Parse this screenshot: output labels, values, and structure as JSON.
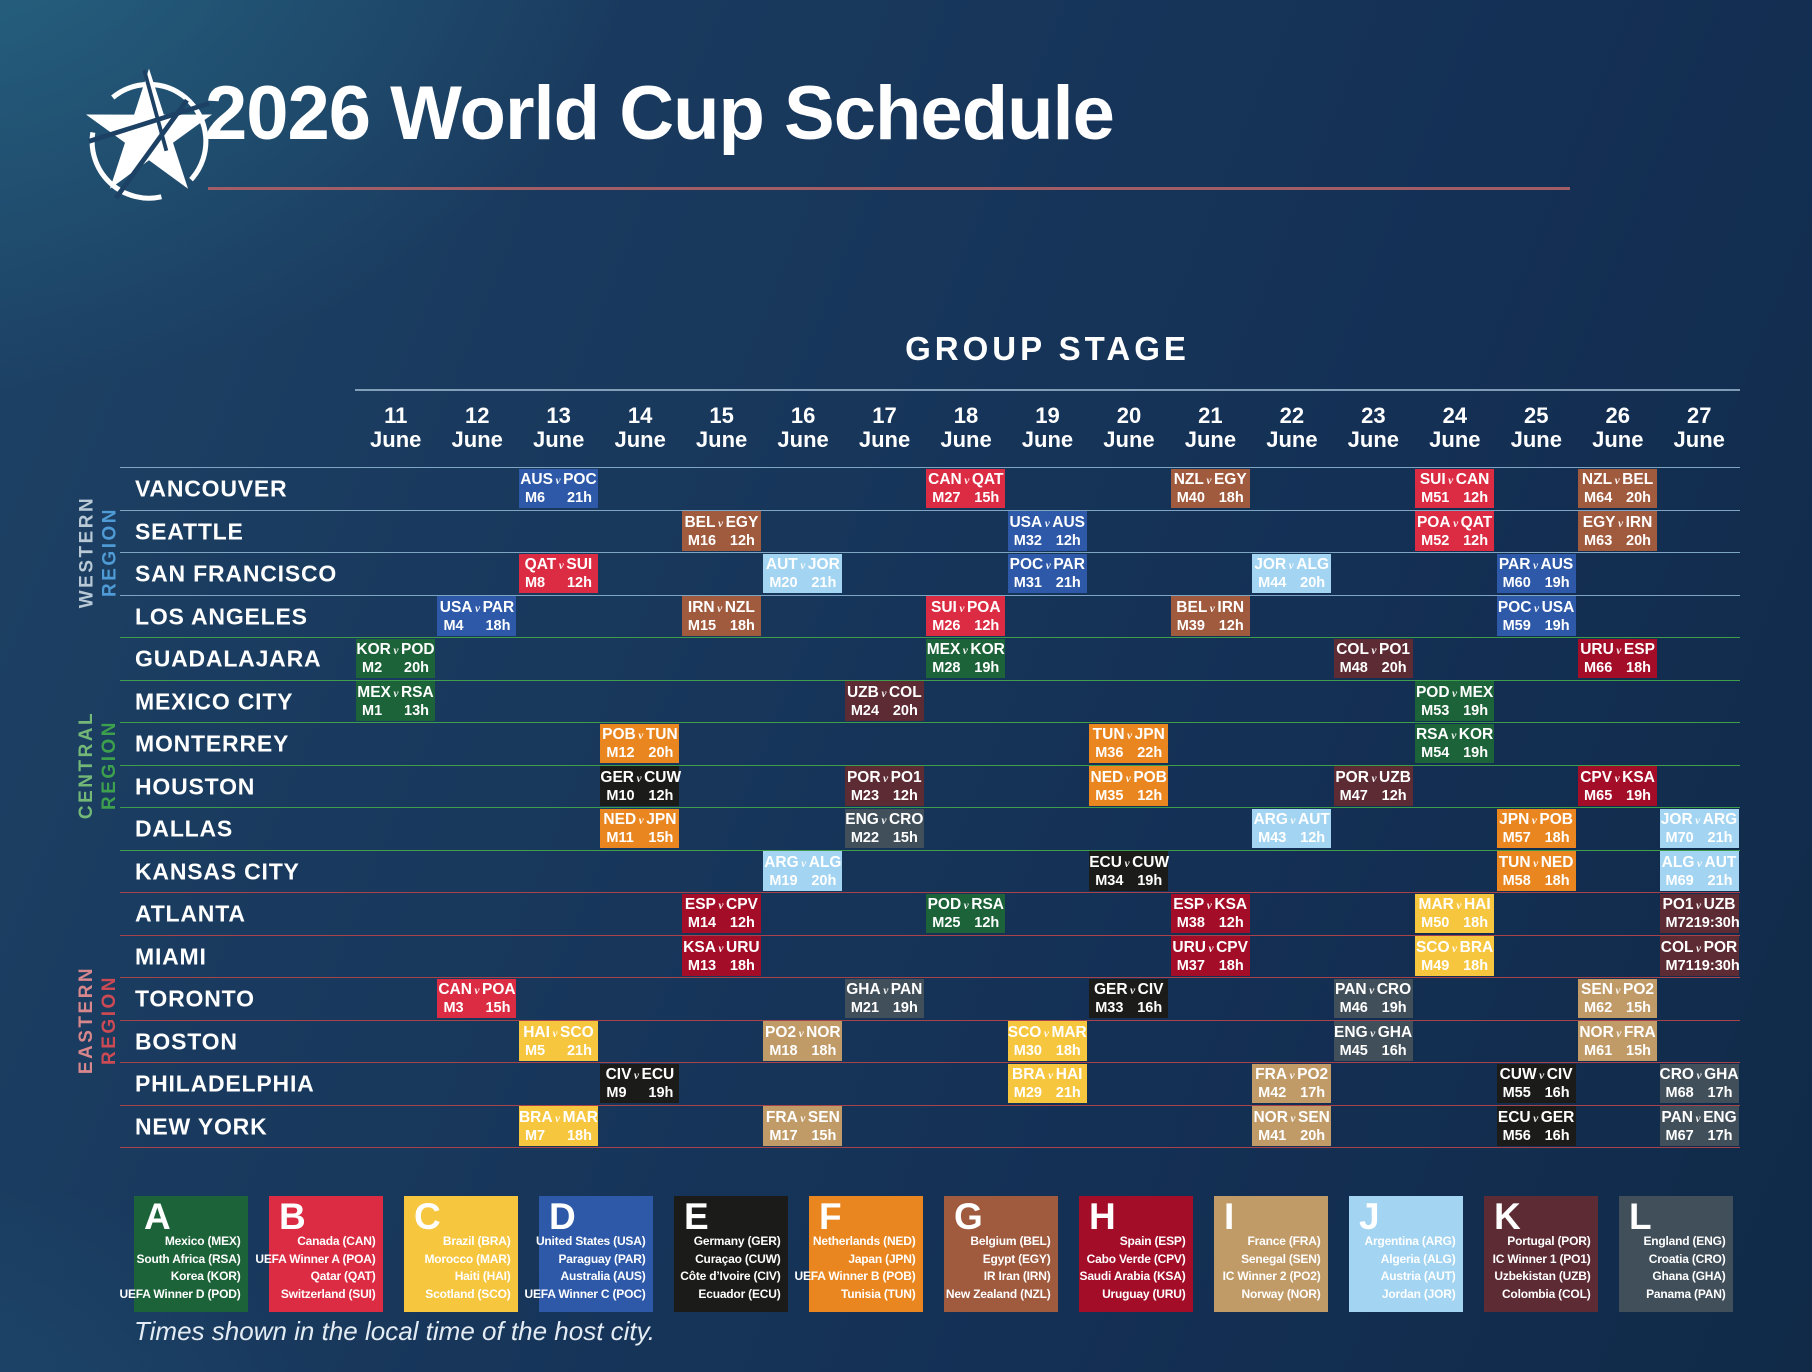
{
  "header": {
    "title": "2026 World Cup Schedule",
    "logo": "star-swoosh-logo",
    "underline_color": "#a25e66"
  },
  "stage_heading": "GROUP STAGE",
  "vs_separator": "v",
  "dates": [
    {
      "day": "11",
      "month": "June"
    },
    {
      "day": "12",
      "month": "June"
    },
    {
      "day": "13",
      "month": "June"
    },
    {
      "day": "14",
      "month": "June"
    },
    {
      "day": "15",
      "month": "June"
    },
    {
      "day": "16",
      "month": "June"
    },
    {
      "day": "17",
      "month": "June"
    },
    {
      "day": "18",
      "month": "June"
    },
    {
      "day": "19",
      "month": "June"
    },
    {
      "day": "20",
      "month": "June"
    },
    {
      "day": "21",
      "month": "June"
    },
    {
      "day": "22",
      "month": "June"
    },
    {
      "day": "23",
      "month": "June"
    },
    {
      "day": "24",
      "month": "June"
    },
    {
      "day": "25",
      "month": "June"
    },
    {
      "day": "26",
      "month": "June"
    },
    {
      "day": "27",
      "month": "June"
    }
  ],
  "regions": [
    {
      "word1": "WESTERN",
      "word2": "REGION",
      "word1_color": "#b9c9d6",
      "word2_color": "#4f9bd5",
      "line_color": "#7ea6c2",
      "cities": [
        "VANCOUVER",
        "SEATTLE",
        "SAN FRANCISCO",
        "LOS ANGELES"
      ]
    },
    {
      "word1": "CENTRAL",
      "word2": "REGION",
      "word1_color": "#74b878",
      "word2_color": "#3da04c",
      "line_color": "#3f9e4c",
      "cities": [
        "GUADALAJARA",
        "MEXICO CITY",
        "MONTERREY",
        "HOUSTON",
        "DALLAS",
        "KANSAS CITY"
      ]
    },
    {
      "word1": "EASTERN",
      "word2": "REGION",
      "word1_color": "#d8878d",
      "word2_color": "#cc4a54",
      "line_color": "#a8434c",
      "cities": [
        "ATLANTA",
        "MIAMI",
        "TORONTO",
        "BOSTON",
        "PHILADELPHIA",
        "NEW YORK"
      ]
    }
  ],
  "legend": [
    {
      "letter": "A",
      "color": "#1d6339",
      "teams": [
        "Mexico (MEX)",
        "South Africa (RSA)",
        "Korea (KOR)",
        "UEFA Winner D (POD)"
      ]
    },
    {
      "letter": "B",
      "color": "#dc2c43",
      "teams": [
        "Canada (CAN)",
        "UEFA Winner A (POA)",
        "Qatar (QAT)",
        "Switzerland (SUI)"
      ]
    },
    {
      "letter": "C",
      "color": "#f7c63f",
      "teams": [
        "Brazil (BRA)",
        "Morocco (MAR)",
        "Haiti (HAI)",
        "Scotland (SCO)"
      ]
    },
    {
      "letter": "D",
      "color": "#2d59a8",
      "teams": [
        "United States (USA)",
        "Paraguay (PAR)",
        "Australia (AUS)",
        "UEFA Winner C (POC)"
      ]
    },
    {
      "letter": "E",
      "color": "#1b1b19",
      "teams": [
        "Germany (GER)",
        "Curaçao (CUW)",
        "Côte d’Ivoire (CIV)",
        "Ecuador (ECU)"
      ]
    },
    {
      "letter": "F",
      "color": "#e9861f",
      "teams": [
        "Netherlands (NED)",
        "Japan (JPN)",
        "UEFA Winner B (POB)",
        "Tunisia (TUN)"
      ]
    },
    {
      "letter": "G",
      "color": "#a05a3e",
      "teams": [
        "Belgium (BEL)",
        "Egypt (EGY)",
        "IR Iran (IRN)",
        "New Zealand (NZL)"
      ]
    },
    {
      "letter": "H",
      "color": "#a30d28",
      "teams": [
        "Spain (ESP)",
        "Cabo Verde (CPV)",
        "Saudi Arabia (KSA)",
        "Uruguay (URU)"
      ]
    },
    {
      "letter": "I",
      "color": "#c09a67",
      "teams": [
        "France (FRA)",
        "Senegal (SEN)",
        "IC Winner 2 (PO2)",
        "Norway (NOR)"
      ]
    },
    {
      "letter": "J",
      "color": "#a3d4f1",
      "teams": [
        "Argentina (ARG)",
        "Algeria (ALG)",
        "Austria (AUT)",
        "Jordan (JOR)"
      ]
    },
    {
      "letter": "K",
      "color": "#5c2b34",
      "teams": [
        "Portugal (POR)",
        "IC Winner 1 (PO1)",
        "Uzbekistan (UZB)",
        "Colombia (COL)"
      ]
    },
    {
      "letter": "L",
      "color": "#414f5a",
      "teams": [
        "England (ENG)",
        "Croatia (CRO)",
        "Ghana (GHA)",
        "Panama (PAN)"
      ]
    }
  ],
  "footer": "Times shown in the local time of the host city.",
  "chart_data": {
    "type": "table",
    "title": "2026 World Cup Schedule — Group Stage",
    "x_axis": "Date (11–27 June)",
    "y_axis": "Host city (grouped by Western / Central / Eastern region)",
    "matches": [
      {
        "city": "VANCOUVER",
        "day": 13,
        "home": "AUS",
        "away": "POC",
        "match": "M6",
        "time": "21h",
        "group": "D"
      },
      {
        "city": "VANCOUVER",
        "day": 18,
        "home": "CAN",
        "away": "QAT",
        "match": "M27",
        "time": "15h",
        "group": "B"
      },
      {
        "city": "VANCOUVER",
        "day": 21,
        "home": "NZL",
        "away": "EGY",
        "match": "M40",
        "time": "18h",
        "group": "G"
      },
      {
        "city": "VANCOUVER",
        "day": 24,
        "home": "SUI",
        "away": "CAN",
        "match": "M51",
        "time": "12h",
        "group": "B"
      },
      {
        "city": "VANCOUVER",
        "day": 26,
        "home": "NZL",
        "away": "BEL",
        "match": "M64",
        "time": "20h",
        "group": "G"
      },
      {
        "city": "SEATTLE",
        "day": 15,
        "home": "BEL",
        "away": "EGY",
        "match": "M16",
        "time": "12h",
        "group": "G"
      },
      {
        "city": "SEATTLE",
        "day": 19,
        "home": "USA",
        "away": "AUS",
        "match": "M32",
        "time": "12h",
        "group": "D"
      },
      {
        "city": "SEATTLE",
        "day": 24,
        "home": "POA",
        "away": "QAT",
        "match": "M52",
        "time": "12h",
        "group": "B"
      },
      {
        "city": "SEATTLE",
        "day": 26,
        "home": "EGY",
        "away": "IRN",
        "match": "M63",
        "time": "20h",
        "group": "G"
      },
      {
        "city": "SAN FRANCISCO",
        "day": 13,
        "home": "QAT",
        "away": "SUI",
        "match": "M8",
        "time": "12h",
        "group": "B"
      },
      {
        "city": "SAN FRANCISCO",
        "day": 16,
        "home": "AUT",
        "away": "JOR",
        "match": "M20",
        "time": "21h",
        "group": "J"
      },
      {
        "city": "SAN FRANCISCO",
        "day": 19,
        "home": "POC",
        "away": "PAR",
        "match": "M31",
        "time": "21h",
        "group": "D"
      },
      {
        "city": "SAN FRANCISCO",
        "day": 22,
        "home": "JOR",
        "away": "ALG",
        "match": "M44",
        "time": "20h",
        "group": "J"
      },
      {
        "city": "SAN FRANCISCO",
        "day": 25,
        "home": "PAR",
        "away": "AUS",
        "match": "M60",
        "time": "19h",
        "group": "D"
      },
      {
        "city": "LOS ANGELES",
        "day": 12,
        "home": "USA",
        "away": "PAR",
        "match": "M4",
        "time": "18h",
        "group": "D"
      },
      {
        "city": "LOS ANGELES",
        "day": 15,
        "home": "IRN",
        "away": "NZL",
        "match": "M15",
        "time": "18h",
        "group": "G"
      },
      {
        "city": "LOS ANGELES",
        "day": 18,
        "home": "SUI",
        "away": "POA",
        "match": "M26",
        "time": "12h",
        "group": "B"
      },
      {
        "city": "LOS ANGELES",
        "day": 21,
        "home": "BEL",
        "away": "IRN",
        "match": "M39",
        "time": "12h",
        "group": "G"
      },
      {
        "city": "LOS ANGELES",
        "day": 25,
        "home": "POC",
        "away": "USA",
        "match": "M59",
        "time": "19h",
        "group": "D"
      },
      {
        "city": "GUADALAJARA",
        "day": 11,
        "home": "KOR",
        "away": "POD",
        "match": "M2",
        "time": "20h",
        "group": "A"
      },
      {
        "city": "GUADALAJARA",
        "day": 18,
        "home": "MEX",
        "away": "KOR",
        "match": "M28",
        "time": "19h",
        "group": "A"
      },
      {
        "city": "GUADALAJARA",
        "day": 23,
        "home": "COL",
        "away": "PO1",
        "match": "M48",
        "time": "20h",
        "group": "K"
      },
      {
        "city": "GUADALAJARA",
        "day": 26,
        "home": "URU",
        "away": "ESP",
        "match": "M66",
        "time": "18h",
        "group": "H"
      },
      {
        "city": "MEXICO CITY",
        "day": 11,
        "home": "MEX",
        "away": "RSA",
        "match": "M1",
        "time": "13h",
        "group": "A"
      },
      {
        "city": "MEXICO CITY",
        "day": 17,
        "home": "UZB",
        "away": "COL",
        "match": "M24",
        "time": "20h",
        "group": "K"
      },
      {
        "city": "MEXICO CITY",
        "day": 24,
        "home": "POD",
        "away": "MEX",
        "match": "M53",
        "time": "19h",
        "group": "A"
      },
      {
        "city": "MONTERREY",
        "day": 14,
        "home": "POB",
        "away": "TUN",
        "match": "M12",
        "time": "20h",
        "group": "F"
      },
      {
        "city": "MONTERREY",
        "day": 20,
        "home": "TUN",
        "away": "JPN",
        "match": "M36",
        "time": "22h",
        "group": "F"
      },
      {
        "city": "MONTERREY",
        "day": 24,
        "home": "RSA",
        "away": "KOR",
        "match": "M54",
        "time": "19h",
        "group": "A"
      },
      {
        "city": "HOUSTON",
        "day": 14,
        "home": "GER",
        "away": "CUW",
        "match": "M10",
        "time": "12h",
        "group": "E"
      },
      {
        "city": "HOUSTON",
        "day": 17,
        "home": "POR",
        "away": "PO1",
        "match": "M23",
        "time": "12h",
        "group": "K"
      },
      {
        "city": "HOUSTON",
        "day": 20,
        "home": "NED",
        "away": "POB",
        "match": "M35",
        "time": "12h",
        "group": "F"
      },
      {
        "city": "HOUSTON",
        "day": 23,
        "home": "POR",
        "away": "UZB",
        "match": "M47",
        "time": "12h",
        "group": "K"
      },
      {
        "city": "HOUSTON",
        "day": 26,
        "home": "CPV",
        "away": "KSA",
        "match": "M65",
        "time": "19h",
        "group": "H"
      },
      {
        "city": "DALLAS",
        "day": 14,
        "home": "NED",
        "away": "JPN",
        "match": "M11",
        "time": "15h",
        "group": "F"
      },
      {
        "city": "DALLAS",
        "day": 17,
        "home": "ENG",
        "away": "CRO",
        "match": "M22",
        "time": "15h",
        "group": "L"
      },
      {
        "city": "DALLAS",
        "day": 22,
        "home": "ARG",
        "away": "AUT",
        "match": "M43",
        "time": "12h",
        "group": "J"
      },
      {
        "city": "DALLAS",
        "day": 25,
        "home": "JPN",
        "away": "POB",
        "match": "M57",
        "time": "18h",
        "group": "F"
      },
      {
        "city": "DALLAS",
        "day": 27,
        "home": "JOR",
        "away": "ARG",
        "match": "M70",
        "time": "21h",
        "group": "J"
      },
      {
        "city": "KANSAS CITY",
        "day": 16,
        "home": "ARG",
        "away": "ALG",
        "match": "M19",
        "time": "20h",
        "group": "J"
      },
      {
        "city": "KANSAS CITY",
        "day": 20,
        "home": "ECU",
        "away": "CUW",
        "match": "M34",
        "time": "19h",
        "group": "E"
      },
      {
        "city": "KANSAS CITY",
        "day": 25,
        "home": "TUN",
        "away": "NED",
        "match": "M58",
        "time": "18h",
        "group": "F"
      },
      {
        "city": "KANSAS CITY",
        "day": 27,
        "home": "ALG",
        "away": "AUT",
        "match": "M69",
        "time": "21h",
        "group": "J"
      },
      {
        "city": "ATLANTA",
        "day": 15,
        "home": "ESP",
        "away": "CPV",
        "match": "M14",
        "time": "12h",
        "group": "H"
      },
      {
        "city": "ATLANTA",
        "day": 18,
        "home": "POD",
        "away": "RSA",
        "match": "M25",
        "time": "12h",
        "group": "A"
      },
      {
        "city": "ATLANTA",
        "day": 21,
        "home": "ESP",
        "away": "KSA",
        "match": "M38",
        "time": "12h",
        "group": "H"
      },
      {
        "city": "ATLANTA",
        "day": 24,
        "home": "MAR",
        "away": "HAI",
        "match": "M50",
        "time": "18h",
        "group": "C"
      },
      {
        "city": "ATLANTA",
        "day": 27,
        "home": "PO1",
        "away": "UZB",
        "match": "M72",
        "time": "19:30h",
        "group": "K"
      },
      {
        "city": "MIAMI",
        "day": 15,
        "home": "KSA",
        "away": "URU",
        "match": "M13",
        "time": "18h",
        "group": "H"
      },
      {
        "city": "MIAMI",
        "day": 21,
        "home": "URU",
        "away": "CPV",
        "match": "M37",
        "time": "18h",
        "group": "H"
      },
      {
        "city": "MIAMI",
        "day": 24,
        "home": "SCO",
        "away": "BRA",
        "match": "M49",
        "time": "18h",
        "group": "C"
      },
      {
        "city": "MIAMI",
        "day": 27,
        "home": "COL",
        "away": "POR",
        "match": "M71",
        "time": "19:30h",
        "group": "K"
      },
      {
        "city": "TORONTO",
        "day": 12,
        "home": "CAN",
        "away": "POA",
        "match": "M3",
        "time": "15h",
        "group": "B"
      },
      {
        "city": "TORONTO",
        "day": 17,
        "home": "GHA",
        "away": "PAN",
        "match": "M21",
        "time": "19h",
        "group": "L"
      },
      {
        "city": "TORONTO",
        "day": 20,
        "home": "GER",
        "away": "CIV",
        "match": "M33",
        "time": "16h",
        "group": "E"
      },
      {
        "city": "TORONTO",
        "day": 23,
        "home": "PAN",
        "away": "CRO",
        "match": "M46",
        "time": "19h",
        "group": "L"
      },
      {
        "city": "TORONTO",
        "day": 26,
        "home": "SEN",
        "away": "PO2",
        "match": "M62",
        "time": "15h",
        "group": "I"
      },
      {
        "city": "BOSTON",
        "day": 13,
        "home": "HAI",
        "away": "SCO",
        "match": "M5",
        "time": "21h",
        "group": "C"
      },
      {
        "city": "BOSTON",
        "day": 16,
        "home": "PO2",
        "away": "NOR",
        "match": "M18",
        "time": "18h",
        "group": "I"
      },
      {
        "city": "BOSTON",
        "day": 19,
        "home": "SCO",
        "away": "MAR",
        "match": "M30",
        "time": "18h",
        "group": "C"
      },
      {
        "city": "BOSTON",
        "day": 23,
        "home": "ENG",
        "away": "GHA",
        "match": "M45",
        "time": "16h",
        "group": "L"
      },
      {
        "city": "BOSTON",
        "day": 26,
        "home": "NOR",
        "away": "FRA",
        "match": "M61",
        "time": "15h",
        "group": "I"
      },
      {
        "city": "PHILADELPHIA",
        "day": 14,
        "home": "CIV",
        "away": "ECU",
        "match": "M9",
        "time": "19h",
        "group": "E"
      },
      {
        "city": "PHILADELPHIA",
        "day": 19,
        "home": "BRA",
        "away": "HAI",
        "match": "M29",
        "time": "21h",
        "group": "C"
      },
      {
        "city": "PHILADELPHIA",
        "day": 22,
        "home": "FRA",
        "away": "PO2",
        "match": "M42",
        "time": "17h",
        "group": "I"
      },
      {
        "city": "PHILADELPHIA",
        "day": 25,
        "home": "CUW",
        "away": "CIV",
        "match": "M55",
        "time": "16h",
        "group": "E"
      },
      {
        "city": "PHILADELPHIA",
        "day": 27,
        "home": "CRO",
        "away": "GHA",
        "match": "M68",
        "time": "17h",
        "group": "L"
      },
      {
        "city": "NEW YORK",
        "day": 13,
        "home": "BRA",
        "away": "MAR",
        "match": "M7",
        "time": "18h",
        "group": "C"
      },
      {
        "city": "NEW YORK",
        "day": 16,
        "home": "FRA",
        "away": "SEN",
        "match": "M17",
        "time": "15h",
        "group": "I"
      },
      {
        "city": "NEW YORK",
        "day": 22,
        "home": "NOR",
        "away": "SEN",
        "match": "M41",
        "time": "20h",
        "group": "I"
      },
      {
        "city": "NEW YORK",
        "day": 25,
        "home": "ECU",
        "away": "GER",
        "match": "M56",
        "time": "16h",
        "group": "E"
      },
      {
        "city": "NEW YORK",
        "day": 27,
        "home": "PAN",
        "away": "ENG",
        "match": "M67",
        "time": "17h",
        "group": "L"
      }
    ]
  }
}
